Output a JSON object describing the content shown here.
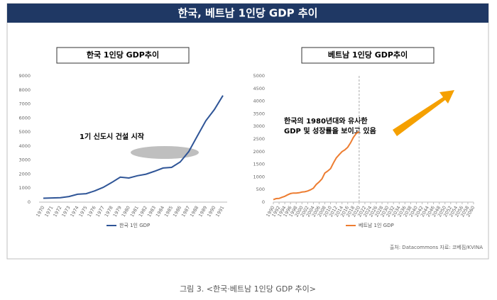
{
  "header": {
    "title": "한국, 베트남 1인당 GDP 추이"
  },
  "source": "출처: Datacommons   자료: 코베짐/KVINA",
  "caption": "그림 3. <한국·베트남 1인당 GDP 추이>",
  "chart_data": [
    {
      "type": "line",
      "title": "한국 1인당 GDP추이",
      "categories": [
        "1970",
        "1971",
        "1972",
        "1973",
        "1974",
        "1975",
        "1976",
        "1977",
        "1978",
        "1979",
        "1980",
        "1981",
        "1982",
        "1983",
        "1984",
        "1985",
        "1986",
        "1987",
        "1988",
        "1989",
        "1990",
        "1991"
      ],
      "series": [
        {
          "name": "한국 1인 GDP",
          "color": "#2f5597",
          "values": [
            280,
            300,
            320,
            400,
            560,
            600,
            800,
            1050,
            1400,
            1780,
            1720,
            1880,
            1990,
            2200,
            2430,
            2480,
            2860,
            3600,
            4700,
            5800,
            6600,
            7600
          ]
        }
      ],
      "ylim": [
        0,
        9000
      ],
      "yticks": [
        0,
        1000,
        2000,
        3000,
        4000,
        5000,
        6000,
        7000,
        8000,
        9000
      ],
      "annotation": "1기 신도시 건설 시작",
      "legend": "bottom"
    },
    {
      "type": "line",
      "title": "베트남 1인당 GDP추이",
      "x": [
        1990,
        1991,
        1992,
        1993,
        1994,
        1995,
        1996,
        1997,
        1998,
        1999,
        2000,
        2001,
        2002,
        2003,
        2004,
        2005,
        2006,
        2007,
        2008,
        2009,
        2010,
        2011,
        2012,
        2013,
        2014,
        2015,
        2016,
        2017,
        2018,
        2019,
        2020
      ],
      "series": [
        {
          "name": "베트남 1인 GDP",
          "color": "#ed7d31",
          "values": [
            100,
            140,
            145,
            190,
            230,
            290,
            340,
            360,
            360,
            370,
            400,
            410,
            440,
            490,
            550,
            700,
            800,
            920,
            1150,
            1230,
            1330,
            1550,
            1750,
            1880,
            2000,
            2070,
            2170,
            2350,
            2570,
            2720,
            2790
          ]
        }
      ],
      "xlim": [
        1990,
        2060
      ],
      "xticks": [
        1990,
        1992,
        1994,
        1996,
        1998,
        2000,
        2002,
        2004,
        2006,
        2008,
        2010,
        2012,
        2014,
        2016,
        2018,
        2020,
        2022,
        2024,
        2026,
        2028,
        2030,
        2032,
        2034,
        2036,
        2038,
        2040,
        2042,
        2044,
        2046,
        2048,
        2050,
        2052,
        2054,
        2056,
        2058,
        2060
      ],
      "ylim": [
        0,
        5000
      ],
      "yticks": [
        0,
        500,
        1000,
        1500,
        2000,
        2500,
        3000,
        3500,
        4000,
        4500,
        5000
      ],
      "reference_x": 2020,
      "annotation": [
        "한국의 1980년대와 유사한",
        "GDP 및 성장률을 보이고 있음"
      ],
      "legend": "bottom"
    }
  ]
}
